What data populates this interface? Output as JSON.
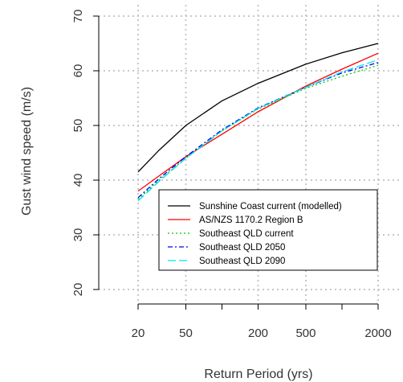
{
  "chart_data": {
    "type": "line",
    "xlabel": "Return Period (yrs)",
    "ylabel": "Gust wind speed (m/s)",
    "x_scale": "log",
    "xlim": [
      20,
      2000
    ],
    "ylim": [
      20,
      70
    ],
    "x_ticks": [
      20,
      50,
      200,
      500,
      2000
    ],
    "y_ticks": [
      20,
      30,
      40,
      50,
      60,
      70
    ],
    "grid": true,
    "legend_position": "bottom-right",
    "x": [
      20,
      30,
      50,
      100,
      200,
      500,
      1000,
      2000
    ],
    "series": [
      {
        "name": "Sunshine Coast current (modelled)",
        "color": "#000000",
        "dash": "solid",
        "values": [
          41.5,
          45.5,
          50.0,
          54.5,
          57.7,
          61.2,
          63.3,
          65.0
        ]
      },
      {
        "name": "AS/NZS 1170.2 Region B",
        "color": "#ff0000",
        "dash": "solid",
        "values": [
          38.0,
          40.8,
          44.3,
          48.4,
          52.5,
          57.2,
          60.3,
          63.2
        ]
      },
      {
        "name": "Southeast QLD current",
        "color": "#00cc00",
        "dash": "dotted",
        "values": [
          36.5,
          40.0,
          44.0,
          49.0,
          53.0,
          56.8,
          59.0,
          61.0
        ]
      },
      {
        "name": "Southeast QLD 2050",
        "color": "#0000ff",
        "dash": "dashdot",
        "values": [
          36.8,
          40.3,
          44.3,
          49.2,
          53.2,
          57.0,
          59.6,
          61.5
        ]
      },
      {
        "name": "Southeast QLD 2090",
        "color": "#00e5ee",
        "dash": "longdash",
        "values": [
          36.2,
          39.8,
          44.0,
          49.0,
          53.1,
          57.0,
          59.8,
          62.0
        ]
      }
    ]
  }
}
